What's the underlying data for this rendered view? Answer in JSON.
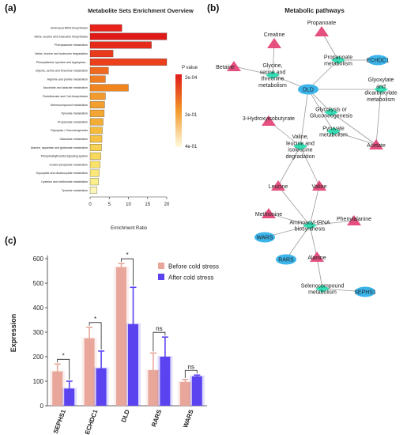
{
  "panels": {
    "a": "(a)",
    "b": "(b)",
    "c": "(c)"
  },
  "chart_data": [
    {
      "type": "bar",
      "orientation": "horizontal",
      "title": "Metabolite Sets Enrichment Overview",
      "xlabel": "Enrichment Ratio",
      "xlim": [
        0,
        20
      ],
      "xticks": [
        "0",
        "5",
        "10",
        "15",
        "20"
      ],
      "legend_title": "P value",
      "legend_ticks": [
        "2e-04",
        "2e-01",
        "4e-01"
      ],
      "categories": [
        "Aminoacyl-tRNA biosynthesis",
        "Valine, leucine and isoleucine biosynthesis",
        "Phenylalanine metabolism",
        "Valine, leucine and isoleucine degradation",
        "Phenylalanine, tyrosine and tryptophan...",
        "Glycine, serine and threonine metabolism",
        "Arginine and proline metabolism",
        "Ascorbate and aldarate metabolism",
        "Pantothenate and CoA biosynthesis",
        "Selenocompound metabolism",
        "Pyruvate metabolism",
        "Propanoate metabolism",
        "Glycolysis / Gluconeogenesis",
        "Galactose metabolism",
        "Alanine, aspartate and glutamate metabolism",
        "Phosphatidylinositol signaling system",
        "Inositol phosphate metabolism",
        "Glyoxylate and dicarboxylate metabolism",
        "Cysteine and methionine metabolism",
        "Tyrosine metabolism"
      ],
      "values": [
        8.3,
        20.0,
        16.0,
        6.0,
        20.0,
        4.8,
        4.0,
        10.0,
        4.0,
        3.8,
        3.7,
        3.4,
        3.2,
        3.1,
        3.0,
        2.8,
        2.6,
        2.4,
        2.2,
        1.8
      ],
      "colors": [
        "#e8221b",
        "#e01a18",
        "#e62a1a",
        "#ea3a1c",
        "#ec3f1c",
        "#ef6a20",
        "#f07d22",
        "#f0851f",
        "#f29a2b",
        "#f29f2d",
        "#f3a633",
        "#f3ac36",
        "#f4b93d",
        "#f5c244",
        "#f7d152",
        "#f8d95c",
        "#f9e16a",
        "#fae777",
        "#fbef8c",
        "#fdf6b6"
      ]
    },
    {
      "type": "bar",
      "xlabel": "",
      "ylabel": "Expression",
      "ylim": [
        0,
        600
      ],
      "yticks": [
        "0",
        "100",
        "200",
        "300",
        "400",
        "500",
        "600"
      ],
      "categories": [
        "SEPHS1",
        "ECHDC1",
        "DLD",
        "RARS",
        "WARS"
      ],
      "series": [
        {
          "name": "Before cold stress",
          "color": "#e8a79a",
          "values": [
            140,
            275,
            565,
            145,
            97
          ],
          "errors": [
            30,
            45,
            15,
            70,
            10
          ]
        },
        {
          "name": "After cold stress",
          "color": "#5b44f0",
          "values": [
            70,
            153,
            333,
            200,
            120
          ],
          "errors": [
            30,
            70,
            150,
            80,
            5
          ]
        }
      ],
      "significance": [
        "*",
        "*",
        "*",
        "ns",
        "ns"
      ]
    }
  ],
  "network": {
    "title": "Metabolic pathways",
    "nodes": [
      {
        "id": "propanoate",
        "label": "Propanoate",
        "kind": "triangle"
      },
      {
        "id": "creatine",
        "label": "Creatine",
        "kind": "triangle"
      },
      {
        "id": "betaine",
        "label": "Betaine",
        "kind": "triangle"
      },
      {
        "id": "gly",
        "label": "Glycine, serine and threonine metabolism",
        "kind": "pathway"
      },
      {
        "id": "propm",
        "label": "Propanoate metabolism",
        "kind": "pathway"
      },
      {
        "id": "echdc1",
        "label": "ECHDC1",
        "kind": "gene"
      },
      {
        "id": "glyox",
        "label": "Glyoxylate and dicarboxylate metabolism",
        "kind": "pathway"
      },
      {
        "id": "dld",
        "label": "DLD",
        "kind": "gene"
      },
      {
        "id": "glyco",
        "label": "Glycolysis or Gluconeogenesis",
        "kind": "pathway"
      },
      {
        "id": "pyr",
        "label": "Pyruvate metabolism",
        "kind": "pathway"
      },
      {
        "id": "acetate",
        "label": "Acetate",
        "kind": "triangle"
      },
      {
        "id": "hib",
        "label": "3-Hydroxyisobutyrate",
        "kind": "triangle"
      },
      {
        "id": "vli",
        "label": "Valine, leucine and isoleucine degradation",
        "kind": "pathway"
      },
      {
        "id": "leucine",
        "label": "Leucine",
        "kind": "triangle"
      },
      {
        "id": "valine",
        "label": "Valine",
        "kind": "triangle"
      },
      {
        "id": "methionine",
        "label": "Methionine",
        "kind": "triangle"
      },
      {
        "id": "atrna",
        "label": "Aminoacyl-tRNA biosynthesis",
        "kind": "pathway"
      },
      {
        "id": "phe",
        "label": "Phenylalanine",
        "kind": "triangle"
      },
      {
        "id": "wars",
        "label": "WARS",
        "kind": "gene"
      },
      {
        "id": "rars",
        "label": "RARS",
        "kind": "gene"
      },
      {
        "id": "alanine",
        "label": "Alanine",
        "kind": "triangle"
      },
      {
        "id": "seleno",
        "label": "Selenocompound metabolism",
        "kind": "pathway"
      },
      {
        "id": "sephs1",
        "label": "SEPHS1",
        "kind": "gene"
      }
    ],
    "colors": {
      "triangle": "#e5507e",
      "gene": "#3bb4ea",
      "pathway": "#35e0b7",
      "edge": "#9a9a9a"
    }
  }
}
